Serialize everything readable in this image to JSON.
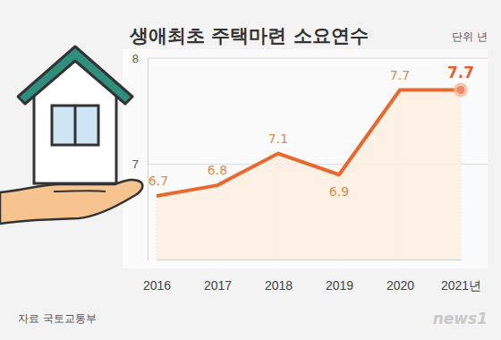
{
  "chart_data": {
    "type": "line",
    "title": "생애최초 주택마련 소요연수",
    "unit_label": "단위 년",
    "source": "자료 국토교통부",
    "credit": "news1",
    "categories": [
      "2016",
      "2017",
      "2018",
      "2019",
      "2020",
      "2021년"
    ],
    "values": [
      6.7,
      6.8,
      7.1,
      6.9,
      7.7,
      7.7
    ],
    "color": "#e8692f",
    "ylim": [
      6.1,
      8
    ],
    "yticks": [
      7,
      8
    ],
    "grid": true,
    "data_labels": true
  }
}
